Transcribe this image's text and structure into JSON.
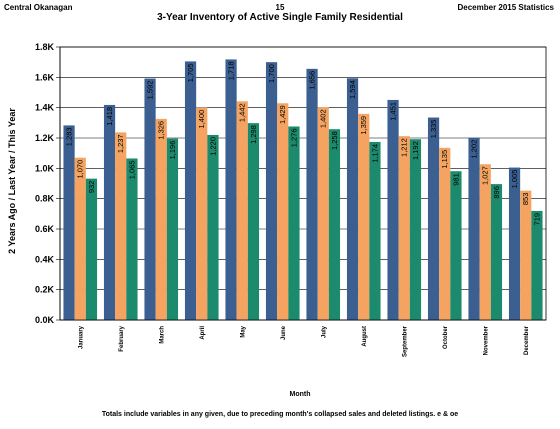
{
  "header": {
    "left": "Central Okanagan",
    "page": "15",
    "right": "December 2015 Statistics"
  },
  "colors": {
    "two_years_ago": "#3b5f91",
    "last_year": "#f4a460",
    "this_year": "#1c8a6c",
    "plot_bg": "#ffffff",
    "grid": "#000000"
  },
  "footnote": "Totals include variables in any given, due to preceding month's collapsed sales and deleted listings. e & oe",
  "chart_data": {
    "type": "bar",
    "title": "3-Year Inventory of Active Single Family Residential",
    "xlabel": "Month",
    "ylabel": "2 Years Ago / Last Year / This Year",
    "ylim": [
      0,
      1800
    ],
    "yticks": [
      0,
      200,
      400,
      600,
      800,
      1000,
      1200,
      1400,
      1600,
      1800
    ],
    "ytick_labels": [
      "0.0K",
      "0.2K",
      "0.4K",
      "0.6K",
      "0.8K",
      "1.0K",
      "1.2K",
      "1.4K",
      "1.6K",
      "1.8K"
    ],
    "grid": true,
    "categories": [
      "January",
      "February",
      "March",
      "April",
      "May",
      "June",
      "July",
      "August",
      "September",
      "October",
      "November",
      "December"
    ],
    "series": [
      {
        "values": [
          1283,
          1418,
          1592,
          1705,
          1718,
          1700,
          1656,
          1594,
          1451,
          1335,
          1202,
          1005
        ],
        "labels": [
          "1,283",
          "1,418",
          "1,592",
          "1,705",
          "1,718",
          "1,700",
          "1,656",
          "1,594",
          "1,451",
          "1,335",
          "1,202",
          "1,005"
        ]
      },
      {
        "values": [
          1070,
          1237,
          1326,
          1400,
          1442,
          1429,
          1402,
          1359,
          1212,
          1135,
          1027,
          853
        ],
        "labels": [
          "1,070",
          "1,237",
          "1,326",
          "1,400",
          "1,442",
          "1,429",
          "1,402",
          "1,359",
          "1,212",
          "1,135",
          "1,027",
          "853"
        ]
      },
      {
        "values": [
          932,
          1065,
          1196,
          1220,
          1298,
          1276,
          1258,
          1174,
          1192,
          981,
          896,
          719
        ],
        "labels": [
          "932",
          "1,065",
          "1,196",
          "1,220",
          "1,298",
          "1,276",
          "1,258",
          "1,174",
          "1,192",
          "981",
          "896",
          "719"
        ]
      }
    ]
  }
}
